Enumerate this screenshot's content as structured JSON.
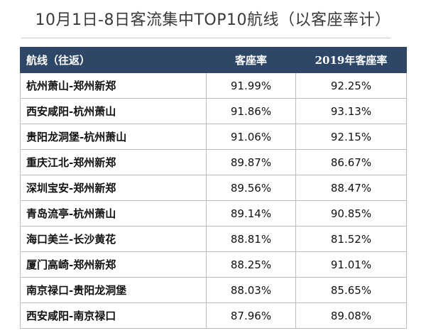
{
  "title": "10月1日-8日客流集中TOP10航线（以客座率计）",
  "table": {
    "headers": [
      "航线（往返）",
      "客座率",
      "2019年客座率"
    ],
    "rows": [
      {
        "route": "杭州萧山-郑州新郑",
        "load": "91.99%",
        "load_2019": "92.25%"
      },
      {
        "route": "西安咸阳-杭州萧山",
        "load": "91.86%",
        "load_2019": "93.13%"
      },
      {
        "route": "贵阳龙洞堡-杭州萧山",
        "load": "91.06%",
        "load_2019": "92.15%"
      },
      {
        "route": "重庆江北-郑州新郑",
        "load": "89.87%",
        "load_2019": "86.67%"
      },
      {
        "route": "深圳宝安-郑州新郑",
        "load": "89.56%",
        "load_2019": "88.47%"
      },
      {
        "route": "青岛流亭-杭州萧山",
        "load": "89.14%",
        "load_2019": "90.85%"
      },
      {
        "route": "海口美兰-长沙黄花",
        "load": "88.81%",
        "load_2019": "81.52%"
      },
      {
        "route": "厦门高崎-郑州新郑",
        "load": "88.25%",
        "load_2019": "91.01%"
      },
      {
        "route": "南京禄口-贵阳龙洞堡",
        "load": "88.03%",
        "load_2019": "85.65%"
      },
      {
        "route": "西安咸阳-南京禄口",
        "load": "87.96%",
        "load_2019": "89.08%"
      }
    ]
  },
  "colors": {
    "header_background": "#2e4766",
    "header_text": "#ffffff",
    "grid": "#bdbdbd"
  }
}
